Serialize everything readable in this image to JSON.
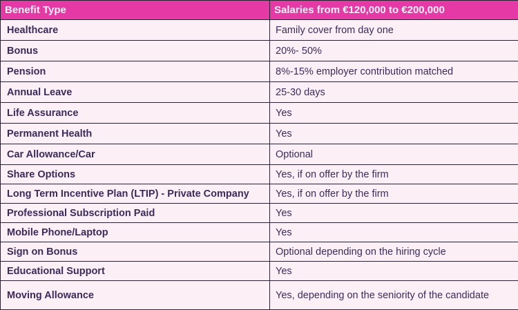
{
  "table": {
    "headers": [
      "Benefit Type",
      "Salaries from  €120,000 to €200,000"
    ],
    "rows": [
      {
        "benefit": "Healthcare",
        "value": "Family cover from day one"
      },
      {
        "benefit": "Bonus",
        "value": "20%- 50%"
      },
      {
        "benefit": "Pension",
        "value": "8%-15% employer contribution matched"
      },
      {
        "benefit": "Annual Leave",
        "value": "25-30 days"
      },
      {
        "benefit": "Life Assurance",
        "value": "Yes"
      },
      {
        "benefit": "Permanent Health",
        "value": "Yes"
      },
      {
        "benefit": "Car Allowance/Car",
        "value": "Optional"
      },
      {
        "benefit": "Share Options",
        "value": "Yes, if on offer by the firm"
      },
      {
        "benefit": "Long Term Incentive Plan (LTIP) - Private Company",
        "value": "Yes, if on offer by the firm"
      },
      {
        "benefit": "Professional Subscription Paid",
        "value": "Yes"
      },
      {
        "benefit": "Mobile Phone/Laptop",
        "value": "Yes"
      },
      {
        "benefit": "Sign on Bonus",
        "value": "Optional depending on the hiring cycle"
      },
      {
        "benefit": "Educational Support",
        "value": "Yes"
      },
      {
        "benefit": "Moving Allowance",
        "value": "Yes, depending on the seniority of the candidate"
      }
    ]
  },
  "colors": {
    "header_bg": "#e53aa6",
    "header_text": "#fdf0f8",
    "row_bg": "#fcf0f6",
    "text": "#3d2a5c",
    "border": "#2a2030"
  }
}
